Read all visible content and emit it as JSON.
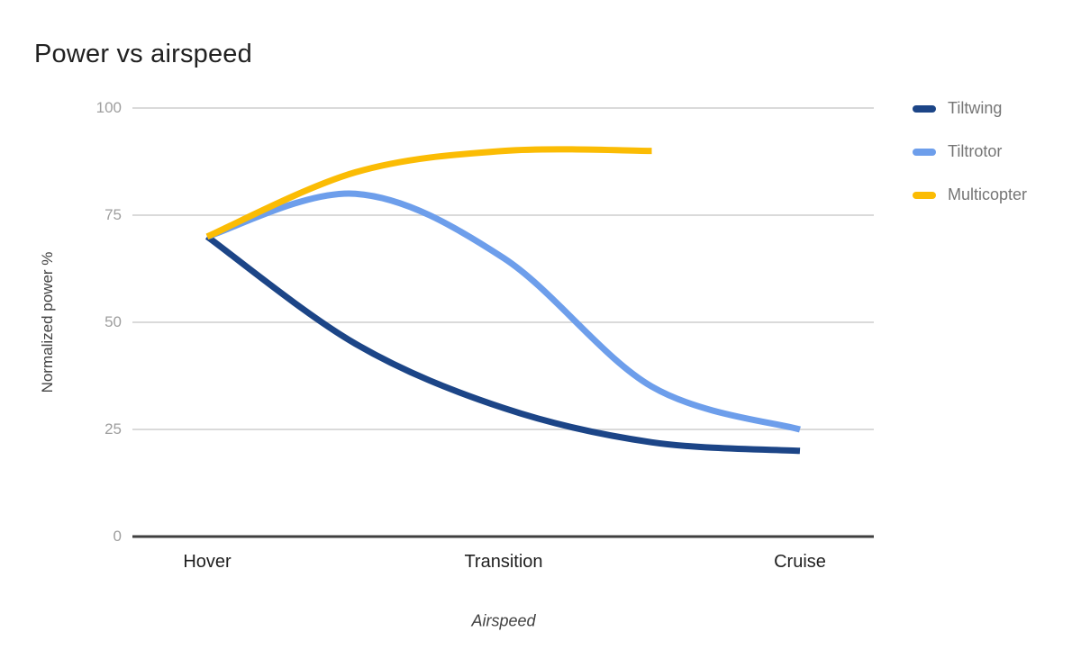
{
  "title": "Power vs airspeed",
  "chart_data": {
    "type": "line",
    "title": "Power vs airspeed",
    "xlabel": "Airspeed",
    "ylabel": "Normalized power %",
    "x_categories": [
      "Hover",
      "",
      "Transition",
      "",
      "Cruise"
    ],
    "y_ticks": [
      100,
      75,
      50,
      25,
      0
    ],
    "ylim": [
      0,
      100
    ],
    "grid": true,
    "smooth_lines": true,
    "legend_position": "right",
    "series": [
      {
        "name": "Tiltwing",
        "color": "#1c4587",
        "values": [
          70,
          45,
          30,
          22,
          20
        ]
      },
      {
        "name": "Tiltrotor",
        "color": "#6d9eeb",
        "values": [
          70,
          80,
          65,
          35,
          25
        ]
      },
      {
        "name": "Multicopter",
        "color": "#fbbc04",
        "values": [
          70,
          85,
          90,
          90,
          null
        ]
      }
    ],
    "colors": {
      "gridline": "#dadada",
      "baseline": "#3f3f3f",
      "tick_label": "#9e9e9e",
      "category_label": "#1f1f1f",
      "axis_title": "#424242",
      "legend_text": "#757575"
    }
  }
}
